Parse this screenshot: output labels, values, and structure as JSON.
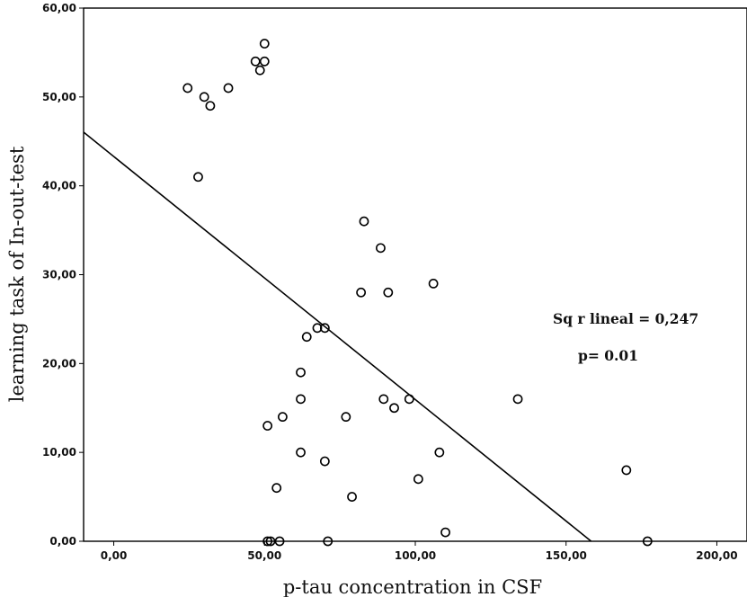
{
  "chart_data": {
    "type": "scatter",
    "xlabel": "p-tau concentration in CSF",
    "ylabel": "learning task of In-out-test",
    "xlim": [
      -10,
      210
    ],
    "ylim": [
      0,
      60
    ],
    "x_ticks": [
      "0,00",
      "50,00",
      "100,00",
      "150,00",
      "200,00"
    ],
    "x_tick_values": [
      0,
      50,
      100,
      150,
      200
    ],
    "y_ticks": [
      "0,00",
      "10,00",
      "20,00",
      "30,00",
      "40,00",
      "50,00",
      "60,00"
    ],
    "y_tick_values": [
      0,
      10,
      20,
      30,
      40,
      50,
      60
    ],
    "grid": false,
    "points": [
      [
        24.5,
        51
      ],
      [
        30,
        50
      ],
      [
        32,
        49
      ],
      [
        28,
        41
      ],
      [
        38,
        51
      ],
      [
        47,
        54
      ],
      [
        48.5,
        53
      ],
      [
        50,
        56
      ],
      [
        50,
        54
      ],
      [
        51,
        13
      ],
      [
        51,
        0
      ],
      [
        52,
        0
      ],
      [
        54,
        6
      ],
      [
        55,
        0
      ],
      [
        56,
        14
      ],
      [
        62,
        19
      ],
      [
        62,
        16
      ],
      [
        62,
        10
      ],
      [
        64,
        23
      ],
      [
        67.5,
        24
      ],
      [
        70,
        24
      ],
      [
        70,
        9
      ],
      [
        71,
        0
      ],
      [
        77,
        14
      ],
      [
        79,
        5
      ],
      [
        82,
        28
      ],
      [
        83,
        36
      ],
      [
        88.5,
        33
      ],
      [
        89.5,
        16
      ],
      [
        91,
        28
      ],
      [
        93,
        15
      ],
      [
        98,
        16
      ],
      [
        101,
        7
      ],
      [
        106,
        29
      ],
      [
        108,
        10
      ],
      [
        110,
        1
      ],
      [
        134,
        16
      ],
      [
        170,
        8
      ],
      [
        177,
        0
      ]
    ],
    "regression_line": {
      "intercept": 43.3,
      "slope": -0.2735
    },
    "annotations": [
      "Sq r lineal = 0,247",
      "p= 0.01"
    ]
  }
}
